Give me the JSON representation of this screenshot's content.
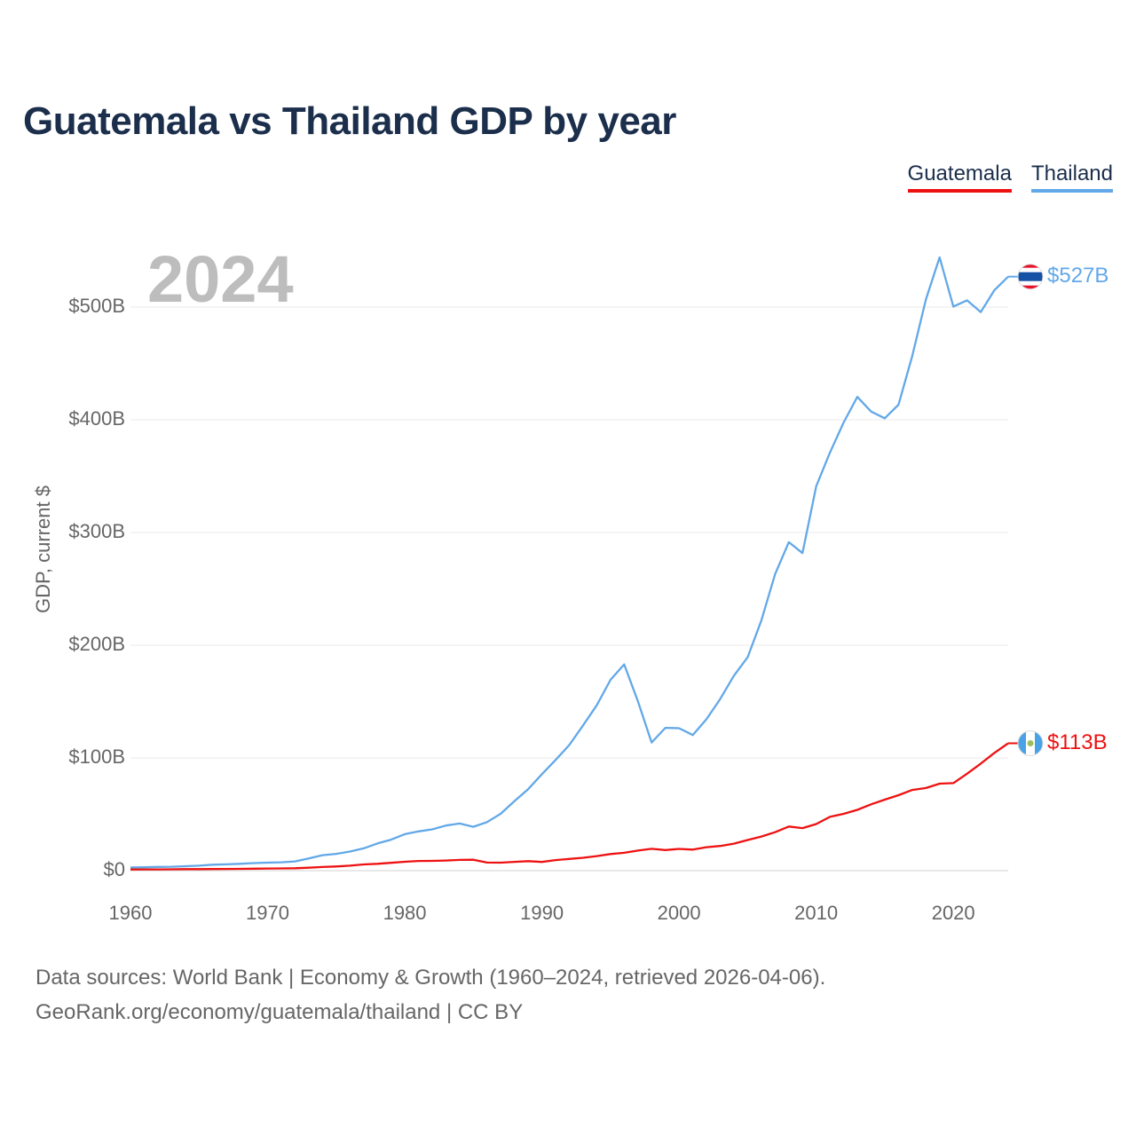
{
  "chart_data": {
    "type": "line",
    "title": "Guatemala vs Thailand GDP by year",
    "ylabel": "GDP, current $",
    "xlabel": "",
    "current_year": "2024",
    "x": [
      1960,
      1961,
      1962,
      1963,
      1964,
      1965,
      1966,
      1967,
      1968,
      1969,
      1970,
      1971,
      1972,
      1973,
      1974,
      1975,
      1976,
      1977,
      1978,
      1979,
      1980,
      1981,
      1982,
      1983,
      1984,
      1985,
      1986,
      1987,
      1988,
      1989,
      1990,
      1991,
      1992,
      1993,
      1994,
      1995,
      1996,
      1997,
      1998,
      1999,
      2000,
      2001,
      2002,
      2003,
      2004,
      2005,
      2006,
      2007,
      2008,
      2009,
      2010,
      2011,
      2012,
      2013,
      2014,
      2015,
      2016,
      2017,
      2018,
      2019,
      2020,
      2021,
      2022,
      2023,
      2024
    ],
    "xlim": [
      1960,
      2024
    ],
    "ylim": [
      0,
      550
    ],
    "x_ticks": [
      1960,
      1970,
      1980,
      1990,
      2000,
      2010,
      2020
    ],
    "x_tick_labels": [
      "1960",
      "1970",
      "1980",
      "1990",
      "2000",
      "2010",
      "2020"
    ],
    "y_ticks": [
      0,
      100,
      200,
      300,
      400,
      500
    ],
    "y_tick_labels": [
      "$0",
      "$100B",
      "$200B",
      "$300B",
      "$400B",
      "$500B"
    ],
    "units": "billions of current US$",
    "series": [
      {
        "name": "Guatemala",
        "color": "#ee1111",
        "end_label": "$113B",
        "values": [
          1.0,
          1.1,
          1.1,
          1.2,
          1.3,
          1.3,
          1.4,
          1.5,
          1.6,
          1.7,
          1.9,
          2.0,
          2.1,
          2.6,
          3.2,
          3.7,
          4.4,
          5.5,
          6.1,
          6.9,
          7.9,
          8.6,
          8.7,
          9.0,
          9.5,
          9.7,
          7.2,
          7.1,
          7.8,
          8.4,
          7.7,
          9.4,
          10.4,
          11.4,
          12.9,
          14.7,
          15.8,
          17.8,
          19.4,
          18.3,
          19.3,
          18.7,
          20.8,
          21.9,
          23.9,
          27.2,
          30.2,
          34.1,
          39.1,
          37.7,
          41.3,
          47.7,
          50.4,
          53.9,
          58.8,
          63.0,
          66.9,
          71.6,
          73.3,
          77.2,
          77.6,
          86.0,
          95.0,
          104.5,
          113.0
        ]
      },
      {
        "name": "Thailand",
        "color": "#62a8e8",
        "end_label": "$527B",
        "values": [
          2.8,
          3.0,
          3.3,
          3.5,
          3.9,
          4.4,
          5.3,
          5.6,
          6.1,
          6.7,
          7.1,
          7.4,
          8.2,
          10.8,
          13.7,
          14.9,
          16.9,
          19.8,
          24.1,
          27.5,
          32.4,
          34.8,
          36.6,
          40.0,
          41.8,
          38.9,
          43.1,
          50.5,
          61.7,
          72.3,
          85.6,
          98.2,
          111.5,
          128.9,
          146.7,
          169.3,
          183.0,
          150.2,
          113.7,
          126.7,
          126.4,
          120.3,
          134.3,
          152.3,
          172.9,
          189.3,
          221.8,
          262.9,
          291.4,
          281.7,
          341.1,
          370.8,
          397.6,
          420.3,
          407.3,
          401.3,
          413.4,
          456.4,
          506.8,
          544.1,
          500.5,
          506.0,
          495.6,
          515.0,
          527.0
        ]
      }
    ],
    "legend": {
      "position": "top-right",
      "items": [
        {
          "label": "Guatemala",
          "color": "#ee1111"
        },
        {
          "label": "Thailand",
          "color": "#62a8e8"
        }
      ]
    }
  },
  "flags": {
    "thailand": "thailand-flag-icon",
    "guatemala": "guatemala-flag-icon"
  },
  "footer": {
    "line1": "Data sources: World Bank | Economy & Growth (1960–2024, retrieved 2026-04-06).",
    "line2": "GeoRank.org/economy/guatemala/thailand | CC BY"
  }
}
